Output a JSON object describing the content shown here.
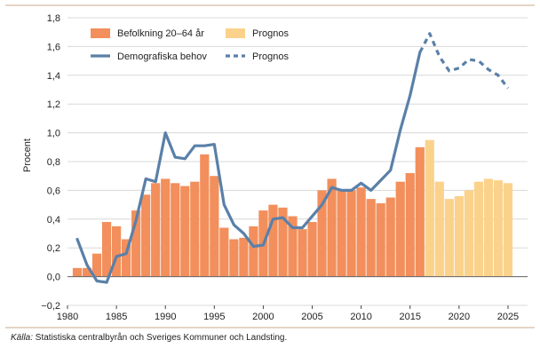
{
  "chart_data": {
    "type": "bar+line",
    "title": "",
    "ylabel": "Procent",
    "xlabel": "",
    "ylim": [
      -0.2,
      1.8
    ],
    "yticks": [
      -0.2,
      0.0,
      0.2,
      0.4,
      0.6,
      0.8,
      1.0,
      1.2,
      1.4,
      1.6,
      1.8
    ],
    "ytick_labels": [
      "−0,2",
      "0,0",
      "0,2",
      "0,4",
      "0,6",
      "0,8",
      "1,0",
      "1,2",
      "1,4",
      "1,6",
      "1,8"
    ],
    "xlim": [
      1980,
      2027
    ],
    "xticks": [
      1980,
      1985,
      1990,
      1995,
      2000,
      2005,
      2010,
      2015,
      2020,
      2025
    ],
    "xtick_labels": [
      "1980",
      "1985",
      "1990",
      "1995",
      "2000",
      "2005",
      "2010",
      "2015",
      "2020",
      "2025"
    ],
    "legend": [
      {
        "label": "Befolkning 20–64 år",
        "kind": "bar",
        "color": "#F28F5C"
      },
      {
        "label": "Prognos",
        "kind": "bar",
        "color": "#FBD28B"
      },
      {
        "label": "Demografiska behov",
        "kind": "line",
        "color": "#5A80A8"
      },
      {
        "label": "Prognos",
        "kind": "dashed",
        "color": "#5A80A8"
      }
    ],
    "bars": {
      "name": "Befolkning 20–64 år",
      "color": "#F28F5C",
      "x": [
        1981,
        1982,
        1983,
        1984,
        1985,
        1986,
        1987,
        1988,
        1989,
        1990,
        1991,
        1992,
        1993,
        1994,
        1995,
        1996,
        1997,
        1998,
        1999,
        2000,
        2001,
        2002,
        2003,
        2004,
        2005,
        2006,
        2007,
        2008,
        2009,
        2010,
        2011,
        2012,
        2013,
        2014,
        2015,
        2016
      ],
      "values": [
        0.06,
        0.06,
        0.16,
        0.38,
        0.35,
        0.26,
        0.46,
        0.57,
        0.65,
        0.68,
        0.65,
        0.63,
        0.66,
        0.85,
        0.7,
        0.34,
        0.26,
        0.27,
        0.35,
        0.46,
        0.5,
        0.48,
        0.42,
        0.33,
        0.38,
        0.6,
        0.68,
        0.6,
        0.6,
        0.62,
        0.54,
        0.51,
        0.55,
        0.66,
        0.72,
        0.9
      ]
    },
    "bars_forecast": {
      "name": "Prognos",
      "color": "#FBD28B",
      "x": [
        2017,
        2018,
        2019,
        2020,
        2021,
        2022,
        2023,
        2024,
        2025
      ],
      "values": [
        0.95,
        0.66,
        0.54,
        0.56,
        0.6,
        0.66,
        0.68,
        0.67,
        0.65
      ]
    },
    "line": {
      "name": "Demografiska behov",
      "color": "#5A80A8",
      "x": [
        1981,
        1982,
        1983,
        1984,
        1985,
        1986,
        1987,
        1988,
        1989,
        1990,
        1991,
        1992,
        1993,
        1994,
        1995,
        1996,
        1997,
        1998,
        1999,
        2000,
        2001,
        2002,
        2003,
        2004,
        2005,
        2006,
        2007,
        2008,
        2009,
        2010,
        2011,
        2012,
        2013,
        2014,
        2015,
        2016
      ],
      "values": [
        0.26,
        0.08,
        -0.03,
        -0.04,
        0.14,
        0.16,
        0.39,
        0.68,
        0.66,
        1.0,
        0.83,
        0.82,
        0.91,
        0.91,
        0.92,
        0.5,
        0.36,
        0.3,
        0.21,
        0.22,
        0.4,
        0.41,
        0.34,
        0.34,
        0.42,
        0.5,
        0.62,
        0.6,
        0.6,
        0.65,
        0.6,
        0.67,
        0.74,
        1.02,
        1.26,
        1.56
      ]
    },
    "line_forecast": {
      "name": "Prognos",
      "color": "#5A80A8",
      "x": [
        2016,
        2017,
        2018,
        2019,
        2020,
        2021,
        2022,
        2023,
        2024,
        2025
      ],
      "values": [
        1.56,
        1.69,
        1.53,
        1.43,
        1.45,
        1.51,
        1.5,
        1.44,
        1.4,
        1.31
      ]
    }
  },
  "source": {
    "label": "Källa:",
    "text": " Statistiska centralbyrån och Sveriges Kommuner och Landsting."
  }
}
